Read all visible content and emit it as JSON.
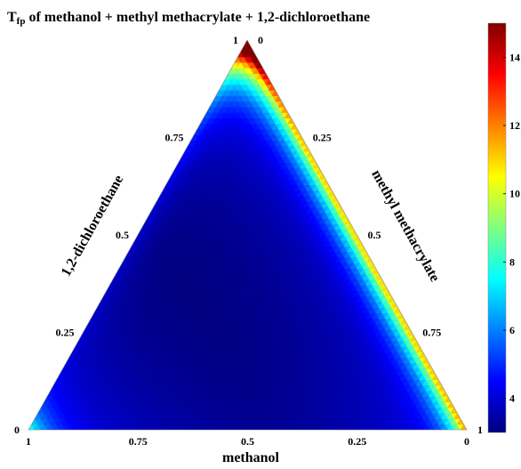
{
  "chart_data": {
    "type": "heatmap",
    "subtype": "ternary-contour",
    "title_main": "T",
    "title_sub": "fp",
    "title_rest": " of methanol + methyl methacrylate + 1,2-dichloroethane",
    "axes": {
      "bottom": {
        "label": "methanol",
        "ticks": [
          "1",
          "0.75",
          "0.5",
          "0.25",
          "0"
        ]
      },
      "left": {
        "label": "1,2-dichloroethane",
        "ticks": [
          "0",
          "0.25",
          "0.5",
          "0.75",
          "1"
        ]
      },
      "right": {
        "label": "methyl methacrylate",
        "ticks": [
          "0",
          "0.25",
          "0.5",
          "0.75",
          "1"
        ]
      }
    },
    "colorbar": {
      "ticks": [
        "4",
        "6",
        "8",
        "10",
        "12",
        "14"
      ],
      "range": [
        3,
        15
      ],
      "colormap": "jet"
    },
    "surface": {
      "min_value": 3,
      "max_value": 15,
      "minimum_location": "interior, slightly toward the methanol vertex",
      "hot_spot": "top vertex (pure methyl methacrylate end of the methanol=0 edge)"
    }
  }
}
